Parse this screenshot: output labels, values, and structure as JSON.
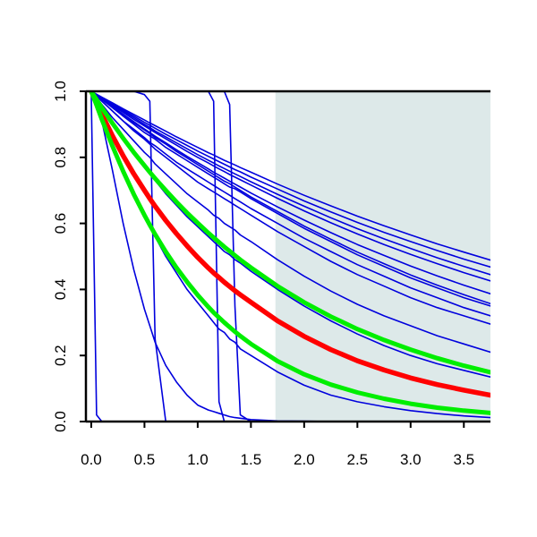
{
  "chart_data": {
    "type": "line",
    "title": "",
    "xlabel": "",
    "ylabel": "",
    "xlim": [
      -0.05,
      3.75
    ],
    "ylim": [
      0,
      1
    ],
    "x_ticks": [
      {
        "value": 0.0,
        "label": "0.0"
      },
      {
        "value": 0.5,
        "label": "0.5"
      },
      {
        "value": 1.0,
        "label": "1.0"
      },
      {
        "value": 1.5,
        "label": "1.5"
      },
      {
        "value": 2.0,
        "label": "2.0"
      },
      {
        "value": 2.5,
        "label": "2.5"
      },
      {
        "value": 3.0,
        "label": "3.0"
      },
      {
        "value": 3.5,
        "label": "3.5"
      }
    ],
    "y_ticks": [
      {
        "value": 0.0,
        "label": "0.0"
      },
      {
        "value": 0.2,
        "label": "0.2"
      },
      {
        "value": 0.4,
        "label": "0.4"
      },
      {
        "value": 0.6,
        "label": "0.6"
      },
      {
        "value": 0.8,
        "label": "0.8"
      },
      {
        "value": 1.0,
        "label": "1.0"
      }
    ],
    "grid": false,
    "legend": "none",
    "shaded_region": {
      "x_from": 1.73,
      "x_to": 3.75,
      "color": "#dde9e9"
    },
    "colors": {
      "blue": "#0000dd",
      "red": "#ff0000",
      "green": "#00ee00"
    },
    "x": [
      0.0,
      0.05,
      0.1,
      0.2,
      0.3,
      0.4,
      0.5,
      0.55,
      0.6,
      0.7,
      0.8,
      0.9,
      1.0,
      1.1,
      1.15,
      1.2,
      1.25,
      1.3,
      1.35,
      1.4,
      1.5,
      1.75,
      2.0,
      2.25,
      2.5,
      2.75,
      3.0,
      3.25,
      3.5,
      3.75
    ],
    "series": [
      {
        "color": "blue",
        "width": 1.6,
        "values": [
          1,
          0.02,
          0,
          0,
          0,
          0,
          0,
          0,
          0,
          0,
          0,
          0,
          0,
          0,
          0,
          0,
          0,
          0,
          0,
          0,
          0,
          0,
          0,
          0,
          0,
          0,
          0,
          0,
          0,
          0
        ]
      },
      {
        "color": "blue",
        "width": 1.6,
        "values": [
          1,
          1,
          1,
          1,
          1,
          1,
          0.99,
          0.97,
          0.25,
          0,
          0,
          0,
          0,
          0,
          0,
          0,
          0,
          0,
          0,
          0,
          0,
          0,
          0,
          0,
          0,
          0,
          0,
          0,
          0,
          0
        ]
      },
      {
        "color": "blue",
        "width": 1.6,
        "values": [
          1,
          1,
          1,
          1,
          1,
          1,
          1,
          1,
          1,
          1,
          1,
          1,
          1,
          1,
          0.97,
          0.06,
          0,
          0,
          0,
          0,
          0,
          0,
          0,
          0,
          0,
          0,
          0,
          0,
          0,
          0
        ]
      },
      {
        "color": "blue",
        "width": 1.6,
        "values": [
          1,
          1,
          1,
          1,
          1,
          1,
          1,
          1,
          1,
          1,
          1,
          1,
          1,
          1,
          1,
          1,
          1,
          0.96,
          0.35,
          0.02,
          0,
          0,
          0,
          0,
          0,
          0,
          0,
          0,
          0,
          0
        ]
      },
      {
        "color": "blue",
        "width": 1.6,
        "values": [
          1,
          0.97,
          0.91,
          0.76,
          0.6,
          0.46,
          0.34,
          0.29,
          0.24,
          0.17,
          0.12,
          0.08,
          0.05,
          0.035,
          0.03,
          0.025,
          0.02,
          0.015,
          0.012,
          0.01,
          0.006,
          0.002,
          0.001,
          0,
          0,
          0,
          0,
          0,
          0,
          0
        ]
      },
      {
        "color": "blue",
        "width": 1.6,
        "values": [
          1,
          0.96,
          0.92,
          0.84,
          0.76,
          0.69,
          0.62,
          0.59,
          0.56,
          0.5,
          0.45,
          0.4,
          0.36,
          0.32,
          0.3,
          0.28,
          0.27,
          0.25,
          0.24,
          0.22,
          0.2,
          0.15,
          0.11,
          0.08,
          0.06,
          0.045,
          0.033,
          0.024,
          0.017,
          0.012
        ]
      },
      {
        "color": "blue",
        "width": 1.6,
        "values": [
          1,
          0.975,
          0.95,
          0.9,
          0.855,
          0.81,
          0.77,
          0.75,
          0.73,
          0.69,
          0.655,
          0.62,
          0.59,
          0.56,
          0.545,
          0.53,
          0.515,
          0.505,
          0.49,
          0.48,
          0.455,
          0.4,
          0.35,
          0.305,
          0.265,
          0.23,
          0.2,
          0.175,
          0.155,
          0.135
        ]
      },
      {
        "color": "blue",
        "width": 1.6,
        "values": [
          1,
          0.98,
          0.96,
          0.92,
          0.885,
          0.85,
          0.815,
          0.8,
          0.78,
          0.75,
          0.72,
          0.69,
          0.665,
          0.64,
          0.625,
          0.615,
          0.6,
          0.59,
          0.58,
          0.565,
          0.545,
          0.49,
          0.44,
          0.395,
          0.355,
          0.32,
          0.29,
          0.26,
          0.235,
          0.21
        ]
      },
      {
        "color": "blue",
        "width": 1.6,
        "values": [
          1,
          0.985,
          0.97,
          0.94,
          0.91,
          0.88,
          0.855,
          0.84,
          0.825,
          0.8,
          0.775,
          0.75,
          0.725,
          0.705,
          0.695,
          0.685,
          0.675,
          0.665,
          0.655,
          0.645,
          0.625,
          0.575,
          0.53,
          0.485,
          0.445,
          0.41,
          0.375,
          0.345,
          0.32,
          0.295
        ]
      },
      {
        "color": "blue",
        "width": 1.6,
        "values": [
          1,
          0.985,
          0.97,
          0.94,
          0.91,
          0.885,
          0.86,
          0.845,
          0.835,
          0.81,
          0.785,
          0.765,
          0.745,
          0.725,
          0.715,
          0.705,
          0.695,
          0.685,
          0.675,
          0.665,
          0.645,
          0.6,
          0.555,
          0.515,
          0.475,
          0.44,
          0.405,
          0.375,
          0.345,
          0.32
        ]
      },
      {
        "color": "blue",
        "width": 1.6,
        "values": [
          1,
          0.987,
          0.975,
          0.95,
          0.925,
          0.9,
          0.875,
          0.865,
          0.855,
          0.83,
          0.81,
          0.79,
          0.77,
          0.75,
          0.74,
          0.73,
          0.72,
          0.71,
          0.705,
          0.695,
          0.675,
          0.63,
          0.585,
          0.545,
          0.505,
          0.47,
          0.435,
          0.405,
          0.375,
          0.35
        ]
      },
      {
        "color": "blue",
        "width": 1.6,
        "values": [
          1,
          0.988,
          0.976,
          0.952,
          0.93,
          0.905,
          0.883,
          0.872,
          0.86,
          0.84,
          0.818,
          0.798,
          0.778,
          0.758,
          0.748,
          0.738,
          0.728,
          0.72,
          0.71,
          0.7,
          0.68,
          0.636,
          0.592,
          0.552,
          0.513,
          0.478,
          0.444,
          0.413,
          0.384,
          0.357
        ]
      },
      {
        "color": "blue",
        "width": 1.6,
        "values": [
          1,
          0.988,
          0.976,
          0.953,
          0.93,
          0.908,
          0.886,
          0.875,
          0.864,
          0.844,
          0.823,
          0.803,
          0.784,
          0.765,
          0.755,
          0.746,
          0.737,
          0.728,
          0.719,
          0.71,
          0.692,
          0.65,
          0.61,
          0.572,
          0.536,
          0.503,
          0.471,
          0.441,
          0.413,
          0.387
        ]
      },
      {
        "color": "blue",
        "width": 1.6,
        "values": [
          1,
          0.989,
          0.978,
          0.957,
          0.936,
          0.915,
          0.895,
          0.885,
          0.875,
          0.856,
          0.837,
          0.818,
          0.8,
          0.783,
          0.774,
          0.765,
          0.757,
          0.748,
          0.74,
          0.732,
          0.716,
          0.676,
          0.638,
          0.602,
          0.568,
          0.536,
          0.506,
          0.478,
          0.451,
          0.426
        ]
      },
      {
        "color": "blue",
        "width": 1.6,
        "values": [
          1,
          0.99,
          0.98,
          0.96,
          0.94,
          0.92,
          0.9,
          0.89,
          0.88,
          0.862,
          0.844,
          0.826,
          0.808,
          0.791,
          0.783,
          0.774,
          0.766,
          0.758,
          0.75,
          0.742,
          0.726,
          0.688,
          0.652,
          0.617,
          0.584,
          0.553,
          0.524,
          0.496,
          0.47,
          0.445
        ]
      },
      {
        "color": "blue",
        "width": 1.6,
        "values": [
          1,
          0.99,
          0.981,
          0.962,
          0.943,
          0.925,
          0.906,
          0.897,
          0.888,
          0.87,
          0.853,
          0.836,
          0.819,
          0.803,
          0.795,
          0.787,
          0.779,
          0.771,
          0.763,
          0.756,
          0.74,
          0.704,
          0.668,
          0.635,
          0.603,
          0.573,
          0.545,
          0.518,
          0.492,
          0.468
        ]
      },
      {
        "color": "blue",
        "width": 1.6,
        "values": [
          1,
          0.991,
          0.982,
          0.965,
          0.947,
          0.93,
          0.913,
          0.904,
          0.896,
          0.879,
          0.862,
          0.846,
          0.83,
          0.814,
          0.807,
          0.799,
          0.791,
          0.784,
          0.777,
          0.769,
          0.755,
          0.719,
          0.685,
          0.653,
          0.622,
          0.593,
          0.565,
          0.538,
          0.513,
          0.489
        ]
      },
      {
        "color": "red",
        "width": 5.5,
        "values": [
          1,
          0.965,
          0.93,
          0.865,
          0.805,
          0.75,
          0.7,
          0.675,
          0.652,
          0.609,
          0.569,
          0.532,
          0.497,
          0.465,
          0.45,
          0.436,
          0.422,
          0.409,
          0.396,
          0.384,
          0.361,
          0.305,
          0.258,
          0.218,
          0.184,
          0.156,
          0.132,
          0.112,
          0.095,
          0.08
        ]
      },
      {
        "color": "green",
        "width": 5,
        "values": [
          1,
          0.958,
          0.915,
          0.834,
          0.758,
          0.688,
          0.625,
          0.595,
          0.567,
          0.514,
          0.466,
          0.423,
          0.383,
          0.347,
          0.33,
          0.315,
          0.3,
          0.286,
          0.272,
          0.259,
          0.235,
          0.183,
          0.143,
          0.112,
          0.088,
          0.069,
          0.054,
          0.042,
          0.033,
          0.026
        ]
      },
      {
        "color": "green",
        "width": 5,
        "values": [
          1,
          0.975,
          0.95,
          0.903,
          0.858,
          0.815,
          0.775,
          0.755,
          0.736,
          0.7,
          0.665,
          0.632,
          0.601,
          0.571,
          0.557,
          0.543,
          0.529,
          0.516,
          0.503,
          0.49,
          0.466,
          0.41,
          0.361,
          0.318,
          0.28,
          0.247,
          0.218,
          0.192,
          0.169,
          0.149
        ]
      }
    ]
  }
}
